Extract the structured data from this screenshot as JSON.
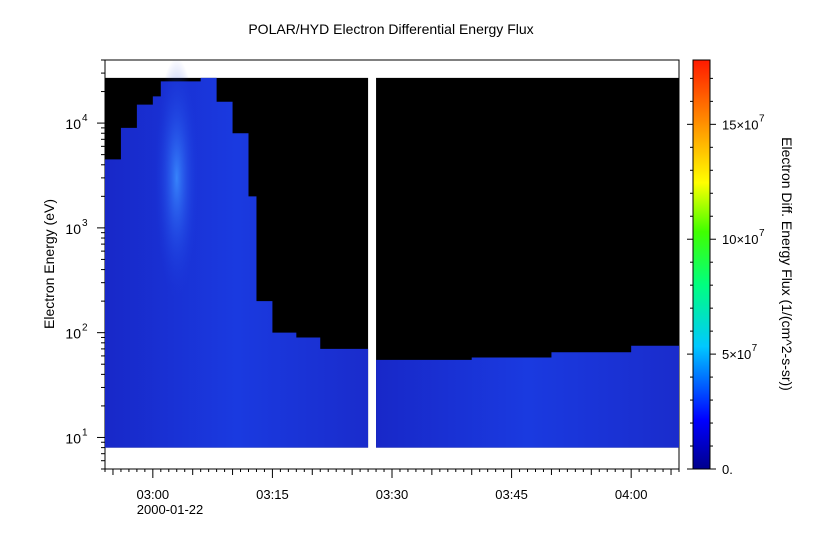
{
  "chart_data": {
    "type": "heatmap",
    "title": "POLAR/HYD  Electron Differential Energy Flux",
    "ylabel": "Electron Energy (eV)",
    "colorbar_label": "Electron Diff. Energy Flux (1/(cm^2-s-sr))",
    "x_axis": {
      "type": "time",
      "range": [
        "02:54",
        "04:06"
      ],
      "ticks": [
        {
          "label": "03:00",
          "value": "03:00"
        },
        {
          "label": "03:15",
          "value": "03:15"
        },
        {
          "label": "03:30",
          "value": "03:30"
        },
        {
          "label": "03:45",
          "value": "03:45"
        },
        {
          "label": "04:00",
          "value": "04:00"
        }
      ],
      "date_label": "2000-01-22"
    },
    "y_axis": {
      "scale": "log",
      "range": [
        5,
        40000
      ],
      "ticks": [
        {
          "base": "10",
          "exp": "1",
          "value": 10
        },
        {
          "base": "10",
          "exp": "2",
          "value": 100
        },
        {
          "base": "10",
          "exp": "3",
          "value": 1000
        },
        {
          "base": "10",
          "exp": "4",
          "value": 10000
        }
      ]
    },
    "colorbar": {
      "colormap": "rainbow",
      "range": [
        0,
        178000000
      ],
      "ticks": [
        {
          "label": "0.",
          "value": 0
        },
        {
          "label": "5×10",
          "exp": "7",
          "value": 50000000
        },
        {
          "label": "10×10",
          "exp": "7",
          "value": 100000000
        },
        {
          "label": "15×10",
          "exp": "7",
          "value": 150000000
        }
      ]
    },
    "data_gap": [
      "03:27",
      "03:28"
    ],
    "energy_channel_range": [
      8,
      27000
    ],
    "segments": [
      {
        "name": "",
        "x_start": "02:54",
        "x_end": "03:27",
        "profile": [
          {
            "time": "02:54",
            "e_max": 4500
          },
          {
            "time": "02:56",
            "e_max": 9000
          },
          {
            "time": "02:58",
            "e_max": 15000
          },
          {
            "time": "03:00",
            "e_max": 18000
          },
          {
            "time": "03:01",
            "e_max": 25000
          },
          {
            "time": "03:04",
            "e_max": 25000
          },
          {
            "time": "03:06",
            "e_max": 27000
          },
          {
            "time": "03:08",
            "e_max": 16000
          },
          {
            "time": "03:10",
            "e_max": 8000
          },
          {
            "time": "03:12",
            "e_max": 2000
          },
          {
            "time": "03:13",
            "e_max": 200
          },
          {
            "time": "03:15",
            "e_max": 100
          },
          {
            "time": "03:18",
            "e_max": 90
          },
          {
            "time": "03:21",
            "e_max": 70
          },
          {
            "time": "03:27",
            "e_max": 65
          }
        ]
      },
      {
        "name": "",
        "x_start": "03:28",
        "x_end": "04:06",
        "profile": [
          {
            "time": "03:28",
            "e_max": 55
          },
          {
            "time": "03:40",
            "e_max": 58
          },
          {
            "time": "03:50",
            "e_max": 65
          },
          {
            "time": "04:00",
            "e_max": 75
          },
          {
            "time": "04:06",
            "e_max": 85
          }
        ]
      }
    ],
    "peak_flux": {
      "time": "03:03",
      "energy": 3000,
      "value": 40000000
    }
  }
}
